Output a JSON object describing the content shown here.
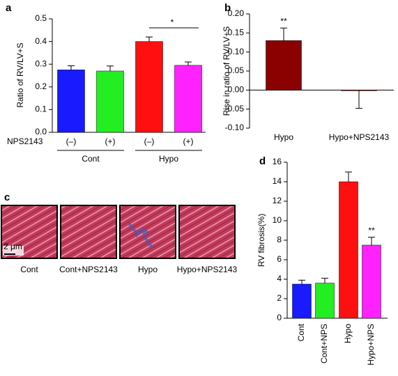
{
  "chart_data": [
    {
      "panel": "a",
      "type": "bar",
      "y_label": "Ratio of RV/LV+S",
      "categories": [
        "(–)",
        "(+)",
        "(–)",
        "(+)"
      ],
      "x_row_label": "NPS2143",
      "groups": [
        "Cont",
        "Hypo"
      ],
      "values": [
        0.275,
        0.27,
        0.4,
        0.295
      ],
      "errors": [
        0.018,
        0.022,
        0.02,
        0.015
      ],
      "colors": [
        "#1a1aff",
        "#22ee22",
        "#ff0f0f",
        "#ff22ff"
      ],
      "ylim": [
        0,
        0.5
      ],
      "yticks": [
        {
          "value": 0,
          "label": "0.0"
        },
        0.1,
        0.2,
        0.3,
        0.4,
        0.5
      ],
      "annotation": "*"
    },
    {
      "panel": "b",
      "type": "bar",
      "y_label": "Rise in ratio of RV/LV+S",
      "categories": [
        "Hypo",
        "Hypo+NPS2143"
      ],
      "values": [
        0.13,
        -0.001
      ],
      "errors": [
        0.033,
        0.047
      ],
      "colors": [
        "#8b0000",
        "#8b0000"
      ],
      "ylim": [
        -0.1,
        0.2
      ],
      "yticks": [
        {
          "value": -0.1,
          "label": "-0.10"
        },
        {
          "value": -0.05,
          "label": "-0.05"
        },
        {
          "value": 0,
          "label": "0.00"
        },
        {
          "value": 0.05,
          "label": "0.05"
        },
        {
          "value": 0.1,
          "label": "0.10"
        },
        {
          "value": 0.15,
          "label": "0.15"
        },
        {
          "value": 0.2,
          "label": "0.20"
        }
      ],
      "annotation": "**"
    },
    {
      "panel": "d",
      "type": "bar",
      "y_label": "RV fibrosis(%)",
      "categories": [
        "Cont",
        "Cont+NPS",
        "Hypo",
        "Hypo+NPS"
      ],
      "values": [
        3.5,
        3.6,
        14,
        7.5
      ],
      "errors": [
        0.4,
        0.5,
        1.0,
        0.8
      ],
      "colors": [
        "#1a1aff",
        "#22ee22",
        "#ff0f0f",
        "#ff22ff"
      ],
      "ylim": [
        0,
        16
      ],
      "yticks": [
        0,
        2,
        4,
        6,
        8,
        10,
        12,
        14,
        16
      ],
      "annotation": "**"
    }
  ],
  "images": {
    "panel": "c",
    "labels": [
      "Cont",
      "Cont+NPS2143",
      "Hypo",
      "Hypo+NPS2143"
    ],
    "scale_bar": "2 μm"
  }
}
